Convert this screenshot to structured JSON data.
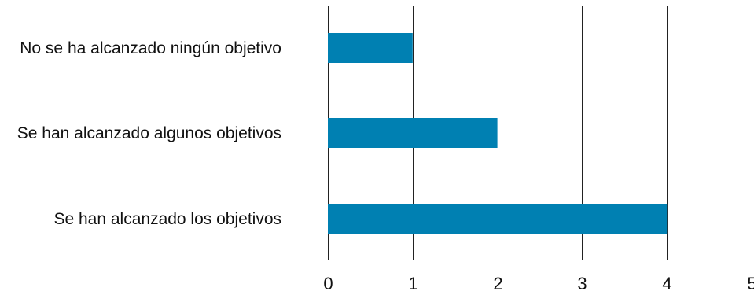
{
  "chart_data": {
    "type": "bar",
    "orientation": "horizontal",
    "categories": [
      "No se ha alcanzado ningún objetivo",
      "Se han alcanzado algunos objetivos",
      "Se han alcanzado los objetivos"
    ],
    "values": [
      1,
      2,
      4
    ],
    "xlim": [
      0,
      5
    ],
    "x_ticks": [
      "0",
      "1",
      "2",
      "3",
      "4",
      "5"
    ],
    "grid": "vertical",
    "legend": "none",
    "colors": {
      "bar": "#0080B2",
      "grid": "#222222",
      "text": "#111111"
    }
  }
}
